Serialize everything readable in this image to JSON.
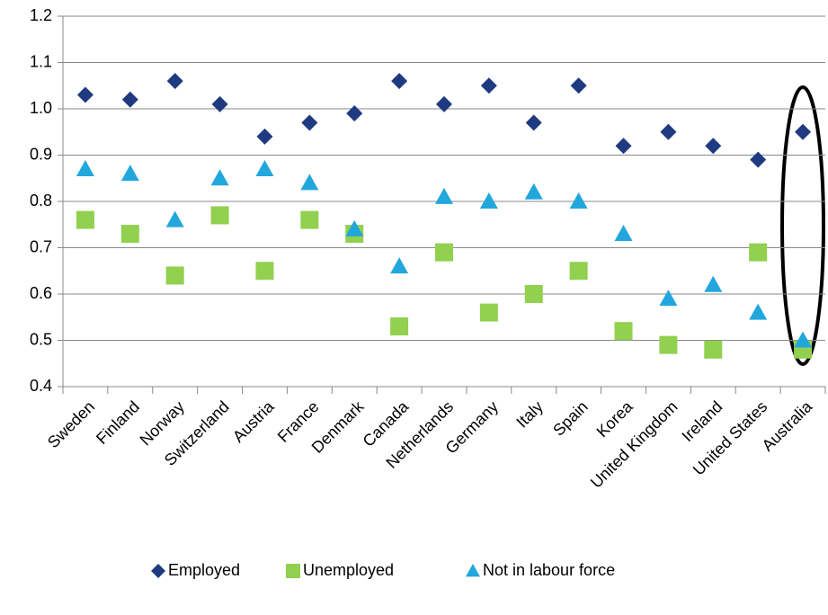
{
  "chart_data": {
    "type": "scatter",
    "categories": [
      "Sweden",
      "Finland",
      "Norway",
      "Switzerland",
      "Austria",
      "France",
      "Denmark",
      "Canada",
      "Netherlands",
      "Germany",
      "Italy",
      "Spain",
      "Korea",
      "United Kingdom",
      "Ireland",
      "United States",
      "Australia"
    ],
    "series": [
      {
        "name": "Employed",
        "color": "#1f3a80",
        "marker": "diamond",
        "values": [
          1.03,
          1.02,
          1.06,
          1.01,
          0.94,
          0.97,
          0.99,
          1.06,
          1.01,
          1.05,
          0.97,
          1.05,
          0.92,
          0.95,
          0.92,
          0.89,
          0.95
        ]
      },
      {
        "name": "Unemployed",
        "color": "#92d050",
        "marker": "square",
        "values": [
          0.76,
          0.73,
          0.64,
          0.77,
          0.65,
          0.76,
          0.73,
          0.53,
          0.69,
          0.56,
          0.6,
          0.65,
          0.52,
          0.49,
          0.48,
          0.69,
          0.48
        ]
      },
      {
        "name": "Not in labour force",
        "color": "#22a7dc",
        "marker": "triangle",
        "values": [
          0.87,
          0.86,
          0.76,
          0.85,
          0.87,
          0.84,
          0.74,
          0.66,
          0.81,
          0.8,
          0.82,
          0.8,
          0.73,
          0.59,
          0.62,
          0.56,
          0.5
        ]
      }
    ],
    "ylim": [
      0.4,
      1.2
    ],
    "yticks": [
      0.4,
      0.5,
      0.6,
      0.7,
      0.8,
      0.9,
      {
        "value": 1,
        "label": "1.0"
      },
      1.1,
      1.2
    ],
    "grid": true,
    "legend": "bottom"
  }
}
